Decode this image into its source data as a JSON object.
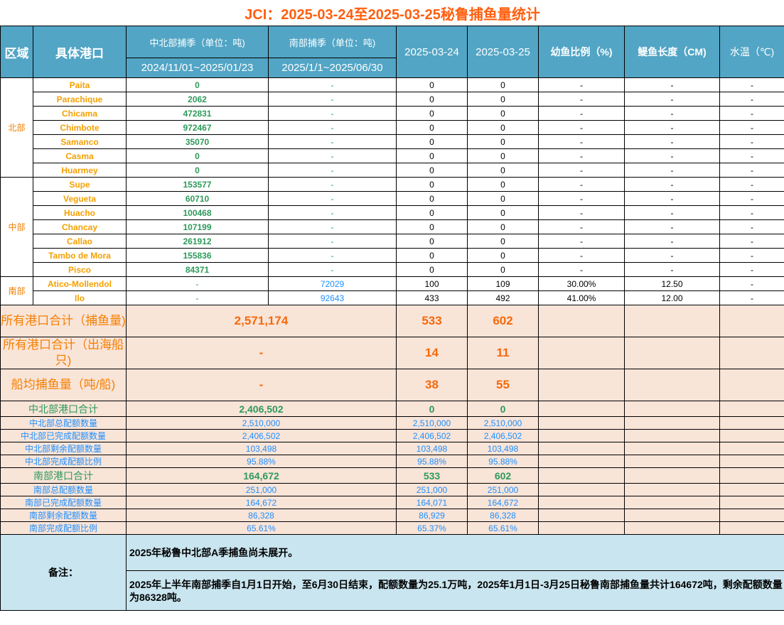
{
  "title": "JCI：2025-03-24至2025-03-25秘鲁捕鱼量统计",
  "header": {
    "region": "区域",
    "port": "具体港口",
    "north_season": "中北部捕季（单位：吨)",
    "south_season": "南部捕季（单位：吨)",
    "north_period": "2024/11/01~2025/01/23",
    "south_period": "2025/1/1~2025/06/30",
    "date1": "2025-03-24",
    "date2": "2025-03-25",
    "juvenile": "幼鱼比例（%)",
    "length": "鳀鱼长度（CM)",
    "water_temp": "水温（℃)"
  },
  "groups": [
    {
      "region": "北部",
      "rows": [
        {
          "port": "Paita",
          "north": "0",
          "south": "-",
          "d1": "0",
          "d2": "0",
          "juv": "-",
          "len": "-",
          "temp": "-"
        },
        {
          "port": "Parachique",
          "north": "2062",
          "south": "-",
          "d1": "0",
          "d2": "0",
          "juv": "-",
          "len": "-",
          "temp": "-"
        },
        {
          "port": "Chicama",
          "north": "472831",
          "south": "-",
          "d1": "0",
          "d2": "0",
          "juv": "-",
          "len": "-",
          "temp": "-"
        },
        {
          "port": "Chimbote",
          "north": "972467",
          "south": "-",
          "d1": "0",
          "d2": "0",
          "juv": "-",
          "len": "-",
          "temp": "-"
        },
        {
          "port": "Samanco",
          "north": "35070",
          "south": "-",
          "d1": "0",
          "d2": "0",
          "juv": "-",
          "len": "-",
          "temp": "-"
        },
        {
          "port": "Casma",
          "north": "0",
          "south": "-",
          "d1": "0",
          "d2": "0",
          "juv": "-",
          "len": "-",
          "temp": "-"
        },
        {
          "port": "Huarmey",
          "north": "0",
          "south": "-",
          "d1": "0",
          "d2": "0",
          "juv": "-",
          "len": "-",
          "temp": "-"
        }
      ]
    },
    {
      "region": "中部",
      "rows": [
        {
          "port": "Supe",
          "north": "153577",
          "south": "-",
          "d1": "0",
          "d2": "0",
          "juv": "-",
          "len": "-",
          "temp": "-"
        },
        {
          "port": "Vegueta",
          "north": "60710",
          "south": "-",
          "d1": "0",
          "d2": "0",
          "juv": "-",
          "len": "-",
          "temp": "-"
        },
        {
          "port": "Huacho",
          "north": "100468",
          "south": "-",
          "d1": "0",
          "d2": "0",
          "juv": "-",
          "len": "-",
          "temp": "-"
        },
        {
          "port": "Chancay",
          "north": "107199",
          "south": "-",
          "d1": "0",
          "d2": "0",
          "juv": "-",
          "len": "-",
          "temp": "-"
        },
        {
          "port": "Callao",
          "north": "261912",
          "south": "-",
          "d1": "0",
          "d2": "0",
          "juv": "-",
          "len": "-",
          "temp": "-"
        },
        {
          "port": "Tambo de Mora",
          "north": "155836",
          "south": "-",
          "d1": "0",
          "d2": "0",
          "juv": "-",
          "len": "-",
          "temp": "-"
        },
        {
          "port": "Pisco",
          "north": "84371",
          "south": "-",
          "d1": "0",
          "d2": "0",
          "juv": "-",
          "len": "-",
          "temp": "-"
        }
      ]
    },
    {
      "region": "南部",
      "rows": [
        {
          "port": "Atico-Mollendol",
          "north": "-",
          "south": "72029",
          "d1": "100",
          "d2": "109",
          "juv": "30.00%",
          "len": "12.50",
          "temp": "-"
        },
        {
          "port": "Ilo",
          "north": "-",
          "south": "92643",
          "d1": "433",
          "d2": "492",
          "juv": "41.00%",
          "len": "12.00",
          "temp": "-"
        }
      ]
    }
  ],
  "totals": [
    {
      "label": "所有港口合计（捕鱼量)",
      "value": "2,571,174",
      "d1": "533",
      "d2": "602"
    },
    {
      "label": "所有港口合计（出海船只)",
      "value": "-",
      "d1": "14",
      "d2": "11"
    },
    {
      "label": "船均捕鱼量（吨/船)",
      "value": "-",
      "d1": "38",
      "d2": "55"
    }
  ],
  "quota": [
    {
      "label": "中北部港口合计",
      "value": "2,406,502",
      "d1": "0",
      "d2": "0",
      "style": "green"
    },
    {
      "label": "中北部总配额数量",
      "value": "2,510,000",
      "d1": "2,510,000",
      "d2": "2,510,000",
      "style": "blue"
    },
    {
      "label": "中北部已完成配额数量",
      "value": "2,406,502",
      "d1": "2,406,502",
      "d2": "2,406,502",
      "style": "blue"
    },
    {
      "label": "中北部剩余配额数量",
      "value": "103,498",
      "d1": "103,498",
      "d2": "103,498",
      "style": "blue"
    },
    {
      "label": "中北部完成配额比例",
      "value": "95.88%",
      "d1": "95.88%",
      "d2": "95.88%",
      "style": "blue"
    },
    {
      "label": "南部港口合计",
      "value": "164,672",
      "d1": "533",
      "d2": "602",
      "style": "green"
    },
    {
      "label": "南部总配额数量",
      "value": "251,000",
      "d1": "251,000",
      "d2": "251,000",
      "style": "blue"
    },
    {
      "label": "南部已完成配额数量",
      "value": "164,672",
      "d1": "164,071",
      "d2": "164,672",
      "style": "blue"
    },
    {
      "label": "南部剩余配额数量",
      "value": "86,328",
      "d1": "86,929",
      "d2": "86,328",
      "style": "blue"
    },
    {
      "label": "南部完成配额比例",
      "value": "65.61%",
      "d1": "65.37%",
      "d2": "65.61%",
      "style": "blue"
    }
  ],
  "notes": {
    "label": "备注：",
    "line1": "2025年秘鲁中北部A季捕鱼尚未展开。",
    "line2": "2025年上半年南部捕季自1月1日开始，至6月30日结束，配额数量为25.1万吨，2025年1月1日-3月25日秘鲁南部捕鱼量共计164672吨，剩余配额数量为86328吨。"
  },
  "colors": {
    "header_bg": "#52a5c5",
    "title": "#ff5f0f",
    "port": "#f5a000",
    "green": "#2e9a5a",
    "blue": "#1e90ff",
    "summary_bg": "#f9e4d8",
    "notes_bg": "#c9e5ef"
  }
}
